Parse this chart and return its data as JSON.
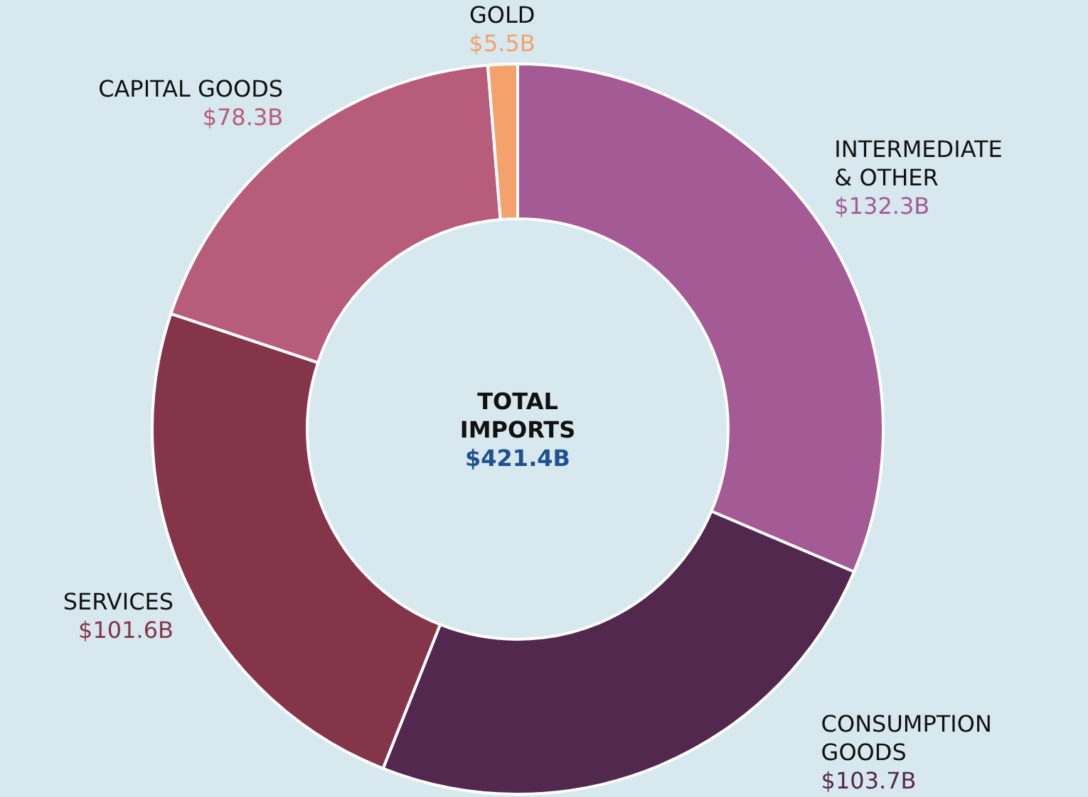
{
  "chart_data": {
    "type": "donut",
    "categories": [
      "INTERMEDIATE & OTHER",
      "CONSUMPTION GOODS",
      "SERVICES",
      "CAPITAL GOODS",
      "GOLD"
    ],
    "values": [
      132.3,
      103.7,
      101.6,
      78.3,
      5.5
    ],
    "value_labels": [
      "$132.3B",
      "$103.7B",
      "$101.6B",
      "$78.3B",
      "$5.5B"
    ],
    "colors": [
      "#a45a94",
      "#53284f",
      "#84354a",
      "#b75c7a",
      "#f4a16c"
    ],
    "annotations": [
      "TOTAL IMPORTS",
      "$421.4B"
    ],
    "legend": false
  }
}
